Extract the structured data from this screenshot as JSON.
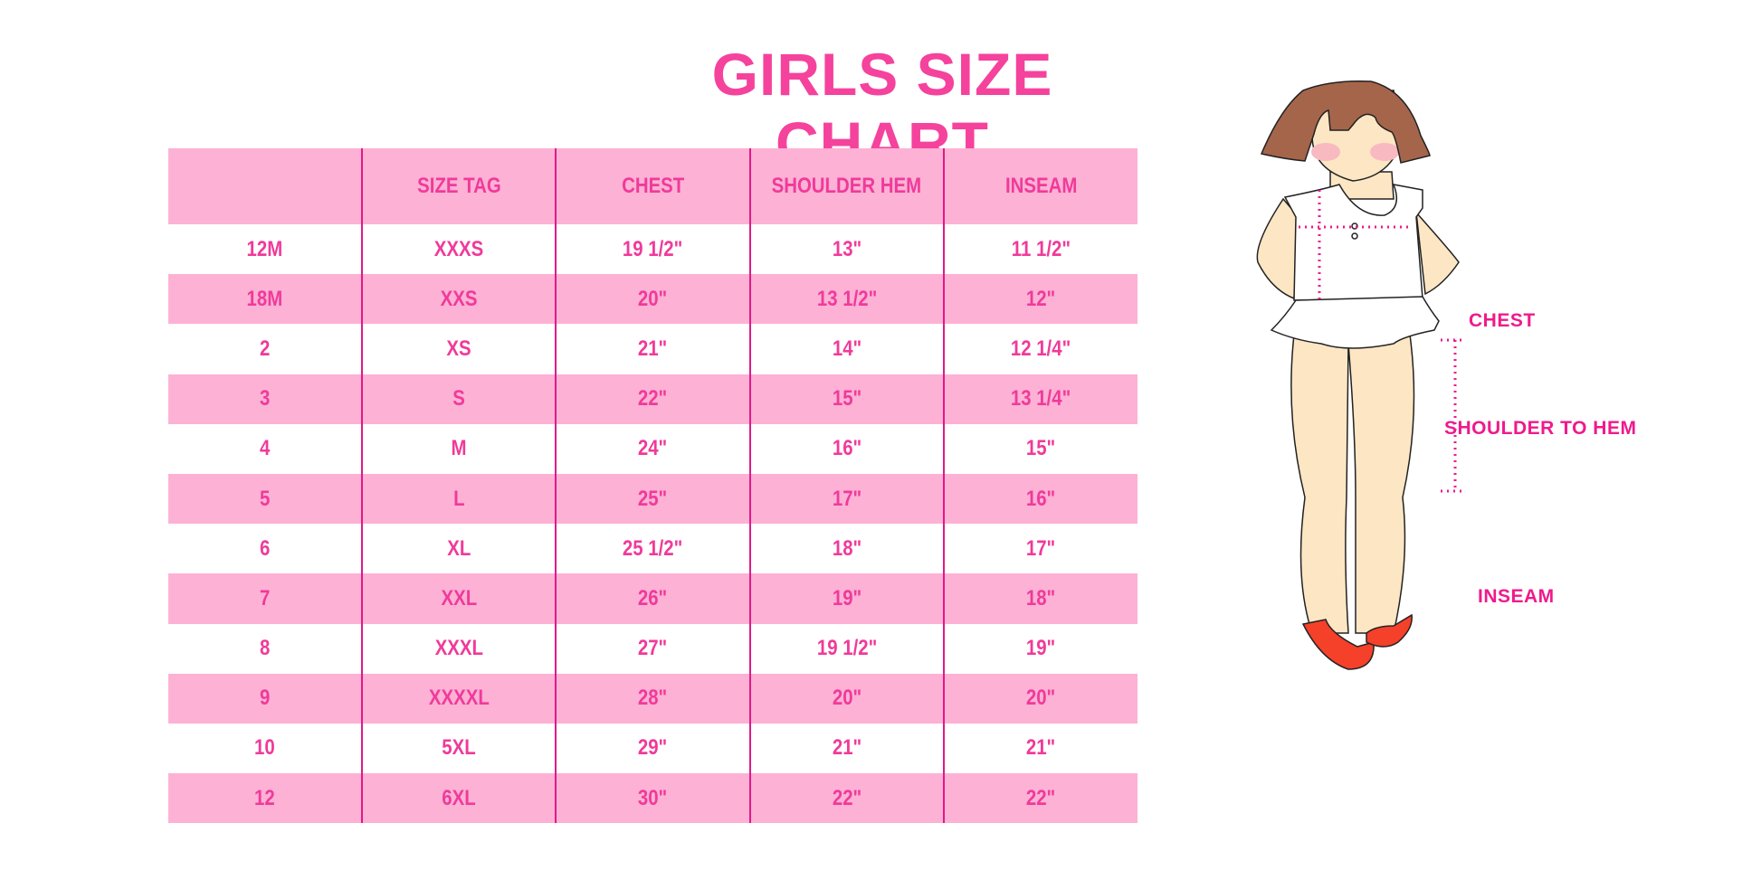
{
  "title": "GIRLS SIZE CHART",
  "table": {
    "headers": [
      "",
      "SIZE TAG",
      "CHEST",
      "SHOULDER HEM",
      "INSEAM"
    ],
    "rows": [
      [
        "12M",
        "XXXS",
        "19 1/2\"",
        "13\"",
        "11 1/2\""
      ],
      [
        "18M",
        "XXS",
        "20\"",
        "13 1/2\"",
        "12\""
      ],
      [
        "2",
        "XS",
        "21\"",
        "14\"",
        "12 1/4\""
      ],
      [
        "3",
        "S",
        "22\"",
        "15\"",
        "13 1/4\""
      ],
      [
        "4",
        "M",
        "24\"",
        "16\"",
        "15\""
      ],
      [
        "5",
        "L",
        "25\"",
        "17\"",
        "16\""
      ],
      [
        "6",
        "XL",
        "25 1/2\"",
        "18\"",
        "17\""
      ],
      [
        "7",
        "XXL",
        "26\"",
        "19\"",
        "18\""
      ],
      [
        "8",
        "XXXL",
        "27\"",
        "19 1/2\"",
        "19\""
      ],
      [
        "9",
        "XXXXL",
        "28\"",
        "20\"",
        "20\""
      ],
      [
        "10",
        "5XL",
        "29\"",
        "21\"",
        "21\""
      ],
      [
        "12",
        "6XL",
        "30\"",
        "22\"",
        "22\""
      ]
    ]
  },
  "figure": {
    "labels": {
      "chest": "CHEST",
      "shoulder_to_hem": "SHOULDER TO HEM",
      "inseam": "INSEAM"
    }
  },
  "colors": {
    "accent": "#f5429d",
    "row_pink": "#fdb1d5",
    "divider": "#e0198a",
    "label": "#ef1a8c"
  }
}
